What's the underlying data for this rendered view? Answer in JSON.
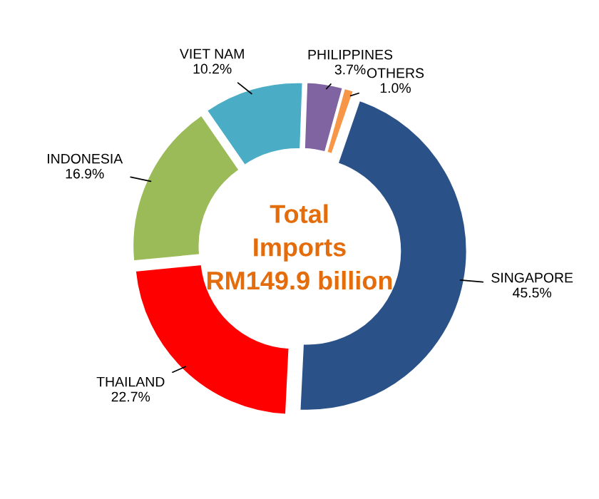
{
  "chart_data": {
    "type": "donut",
    "title": "Total\nImports\nRM149.9 billion",
    "categories": [
      "SINGAPORE",
      "THAILAND",
      "INDONESIA",
      "VIET NAM",
      "PHILIPPINES",
      "OTHERS"
    ],
    "values": [
      45.5,
      22.7,
      16.9,
      10.2,
      3.7,
      1.0
    ],
    "value_labels": [
      "45.5%",
      "22.7%",
      "16.9%",
      "10.2%",
      "3.7%",
      "1.0%"
    ],
    "colors": [
      "#2a5289",
      "#ff0000",
      "#9bbb59",
      "#4bacc6",
      "#8064a2",
      "#f79646"
    ],
    "legend": false
  }
}
